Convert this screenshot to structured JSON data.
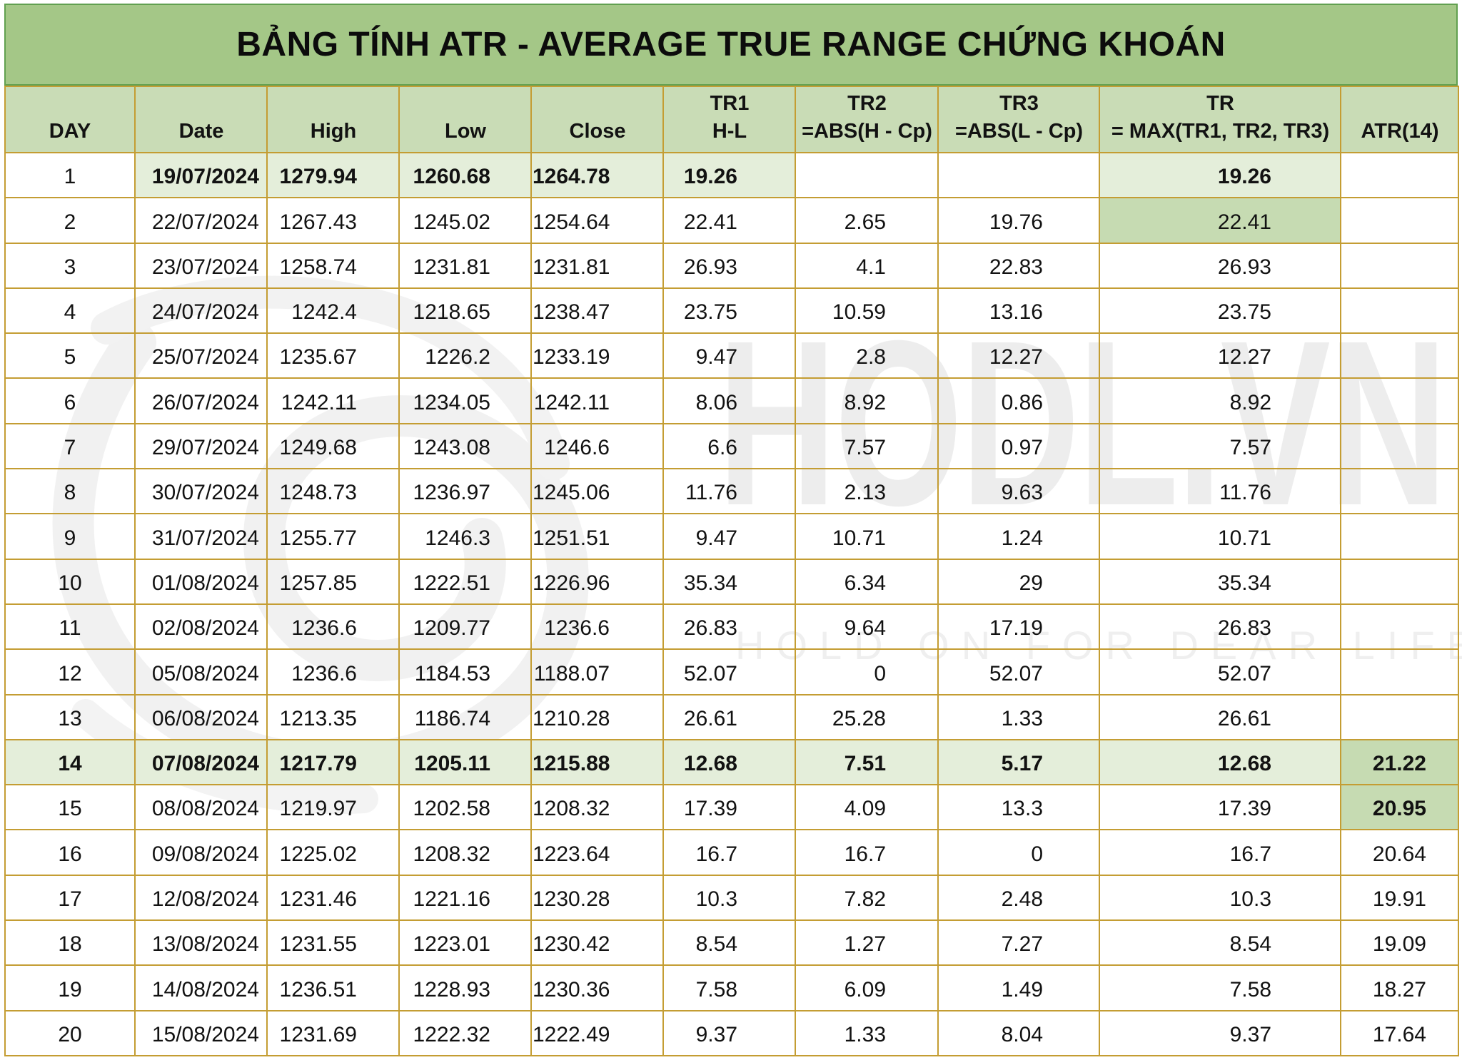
{
  "title": "BẢNG TÍNH ATR - AVERAGE TRUE RANGE CHỨNG KHOÁN",
  "colors": {
    "c-title": "#a4c787",
    "c-title-border": "#61a050",
    "c-header": "#c9dcb6",
    "c-light": "#e4eeda",
    "c-mid": "#c6dbb2",
    "c-gold": "#c49d33",
    "c-wm": "#ededed"
  },
  "watermark": {
    "brand": "HODL.VN",
    "tagline": "HOLD ON FOR DEAR LIFE"
  },
  "columns": [
    {
      "key": "day",
      "label": "DAY",
      "sublabel": ""
    },
    {
      "key": "date",
      "label": "Date",
      "sublabel": ""
    },
    {
      "key": "high",
      "label": "High",
      "sublabel": ""
    },
    {
      "key": "low",
      "label": "Low",
      "sublabel": ""
    },
    {
      "key": "close",
      "label": "Close",
      "sublabel": ""
    },
    {
      "key": "tr1",
      "label": "TR1",
      "sublabel": "H-L"
    },
    {
      "key": "tr2",
      "label": "TR2",
      "sublabel": "=ABS(H - Cp)"
    },
    {
      "key": "tr3",
      "label": "TR3",
      "sublabel": "=ABS(L - Cp)"
    },
    {
      "key": "tr",
      "label": "TR",
      "sublabel": "= MAX(TR1, TR2, TR3)"
    },
    {
      "key": "atr",
      "label": "ATR(14)",
      "sublabel": ""
    }
  ],
  "rows": [
    {
      "day": "1",
      "date": "19/07/2024",
      "high": "1279.94",
      "low": "1260.68",
      "close": "1264.78",
      "tr1": "19.26",
      "tr2": "",
      "tr3": "",
      "tr": "19.26",
      "atr": ""
    },
    {
      "day": "2",
      "date": "22/07/2024",
      "high": "1267.43",
      "low": "1245.02",
      "close": "1254.64",
      "tr1": "22.41",
      "tr2": "2.65",
      "tr3": "19.76",
      "tr": "22.41",
      "atr": ""
    },
    {
      "day": "3",
      "date": "23/07/2024",
      "high": "1258.74",
      "low": "1231.81",
      "close": "1231.81",
      "tr1": "26.93",
      "tr2": "4.1",
      "tr3": "22.83",
      "tr": "26.93",
      "atr": ""
    },
    {
      "day": "4",
      "date": "24/07/2024",
      "high": "1242.4",
      "low": "1218.65",
      "close": "1238.47",
      "tr1": "23.75",
      "tr2": "10.59",
      "tr3": "13.16",
      "tr": "23.75",
      "atr": ""
    },
    {
      "day": "5",
      "date": "25/07/2024",
      "high": "1235.67",
      "low": "1226.2",
      "close": "1233.19",
      "tr1": "9.47",
      "tr2": "2.8",
      "tr3": "12.27",
      "tr": "12.27",
      "atr": ""
    },
    {
      "day": "6",
      "date": "26/07/2024",
      "high": "1242.11",
      "low": "1234.05",
      "close": "1242.11",
      "tr1": "8.06",
      "tr2": "8.92",
      "tr3": "0.86",
      "tr": "8.92",
      "atr": ""
    },
    {
      "day": "7",
      "date": "29/07/2024",
      "high": "1249.68",
      "low": "1243.08",
      "close": "1246.6",
      "tr1": "6.6",
      "tr2": "7.57",
      "tr3": "0.97",
      "tr": "7.57",
      "atr": ""
    },
    {
      "day": "8",
      "date": "30/07/2024",
      "high": "1248.73",
      "low": "1236.97",
      "close": "1245.06",
      "tr1": "11.76",
      "tr2": "2.13",
      "tr3": "9.63",
      "tr": "11.76",
      "atr": ""
    },
    {
      "day": "9",
      "date": "31/07/2024",
      "high": "1255.77",
      "low": "1246.3",
      "close": "1251.51",
      "tr1": "9.47",
      "tr2": "10.71",
      "tr3": "1.24",
      "tr": "10.71",
      "atr": ""
    },
    {
      "day": "10",
      "date": "01/08/2024",
      "high": "1257.85",
      "low": "1222.51",
      "close": "1226.96",
      "tr1": "35.34",
      "tr2": "6.34",
      "tr3": "29",
      "tr": "35.34",
      "atr": ""
    },
    {
      "day": "11",
      "date": "02/08/2024",
      "high": "1236.6",
      "low": "1209.77",
      "close": "1236.6",
      "tr1": "26.83",
      "tr2": "9.64",
      "tr3": "17.19",
      "tr": "26.83",
      "atr": ""
    },
    {
      "day": "12",
      "date": "05/08/2024",
      "high": "1236.6",
      "low": "1184.53",
      "close": "1188.07",
      "tr1": "52.07",
      "tr2": "0",
      "tr3": "52.07",
      "tr": "52.07",
      "atr": ""
    },
    {
      "day": "13",
      "date": "06/08/2024",
      "high": "1213.35",
      "low": "1186.74",
      "close": "1210.28",
      "tr1": "26.61",
      "tr2": "25.28",
      "tr3": "1.33",
      "tr": "26.61",
      "atr": ""
    },
    {
      "day": "14",
      "date": "07/08/2024",
      "high": "1217.79",
      "low": "1205.11",
      "close": "1215.88",
      "tr1": "12.68",
      "tr2": "7.51",
      "tr3": "5.17",
      "tr": "12.68",
      "atr": "21.22"
    },
    {
      "day": "15",
      "date": "08/08/2024",
      "high": "1219.97",
      "low": "1202.58",
      "close": "1208.32",
      "tr1": "17.39",
      "tr2": "4.09",
      "tr3": "13.3",
      "tr": "17.39",
      "atr": "20.95"
    },
    {
      "day": "16",
      "date": "09/08/2024",
      "high": "1225.02",
      "low": "1208.32",
      "close": "1223.64",
      "tr1": "16.7",
      "tr2": "16.7",
      "tr3": "0",
      "tr": "16.7",
      "atr": "20.64"
    },
    {
      "day": "17",
      "date": "12/08/2024",
      "high": "1231.46",
      "low": "1221.16",
      "close": "1230.28",
      "tr1": "10.3",
      "tr2": "7.82",
      "tr3": "2.48",
      "tr": "10.3",
      "atr": "19.91"
    },
    {
      "day": "18",
      "date": "13/08/2024",
      "high": "1231.55",
      "low": "1223.01",
      "close": "1230.42",
      "tr1": "8.54",
      "tr2": "1.27",
      "tr3": "7.27",
      "tr": "8.54",
      "atr": "19.09"
    },
    {
      "day": "19",
      "date": "14/08/2024",
      "high": "1236.51",
      "low": "1228.93",
      "close": "1230.36",
      "tr1": "7.58",
      "tr2": "6.09",
      "tr3": "1.49",
      "tr": "7.58",
      "atr": "18.27"
    },
    {
      "day": "20",
      "date": "15/08/2024",
      "high": "1231.69",
      "low": "1222.32",
      "close": "1222.49",
      "tr1": "9.37",
      "tr2": "1.33",
      "tr3": "8.04",
      "tr": "9.37",
      "atr": "17.64"
    }
  ]
}
